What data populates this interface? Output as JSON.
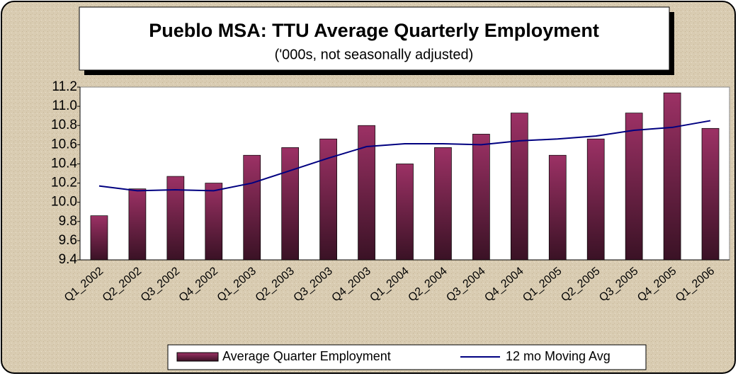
{
  "chart_data": {
    "type": "bar",
    "title": "Pueblo MSA: TTU Average Quarterly Employment",
    "subtitle": "('000s, not seasonally adjusted)",
    "categories": [
      "Q1_2002",
      "Q2_2002",
      "Q3_2002",
      "Q4_2002",
      "Q1_2003",
      "Q2_2003",
      "Q3_2003",
      "Q4_2003",
      "Q1_2004",
      "Q2_2004",
      "Q3_2004",
      "Q4_2004",
      "Q1_2005",
      "Q2_2005",
      "Q3_2005",
      "Q4_2005",
      "Q1_2006"
    ],
    "series": [
      {
        "name": "Average Quarter Employment",
        "type": "bar",
        "color": "#8b2a5a",
        "values": [
          9.86,
          10.14,
          10.27,
          10.2,
          10.49,
          10.57,
          10.66,
          10.8,
          10.4,
          10.57,
          10.71,
          10.93,
          10.49,
          10.66,
          10.93,
          11.14,
          10.77
        ]
      },
      {
        "name": "12 mo Moving Avg",
        "type": "line",
        "color": "#000080",
        "values": [
          10.17,
          10.12,
          10.13,
          10.12,
          10.2,
          10.33,
          10.46,
          10.58,
          10.61,
          10.61,
          10.6,
          10.64,
          10.66,
          10.69,
          10.75,
          10.78,
          10.85
        ]
      }
    ],
    "ylim": [
      9.4,
      11.2
    ],
    "yticks": [
      9.4,
      9.6,
      9.8,
      {
        "value": 10,
        "label": "10.0"
      },
      10.2,
      10.4,
      10.6,
      10.8,
      {
        "value": 11,
        "label": "11.0"
      },
      11.2
    ],
    "legend": "bottom"
  }
}
